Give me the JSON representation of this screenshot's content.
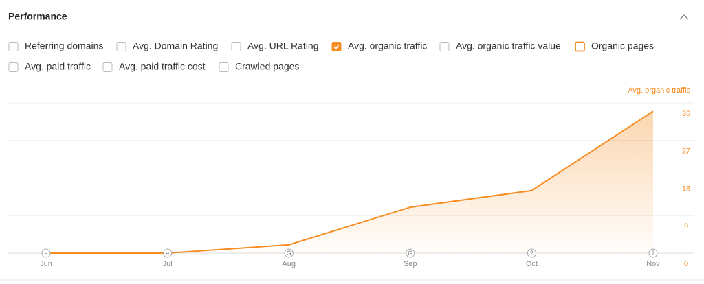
{
  "header": {
    "title": "Performance"
  },
  "checkboxes": [
    {
      "label": "Referring domains",
      "state": "off"
    },
    {
      "label": "Avg. Domain Rating",
      "state": "off"
    },
    {
      "label": "Avg. URL Rating",
      "state": "off"
    },
    {
      "label": "Avg. organic traffic",
      "state": "checked"
    },
    {
      "label": "Avg. organic traffic value",
      "state": "off"
    },
    {
      "label": "Organic pages",
      "state": "highlighted"
    },
    {
      "label": "Avg. paid traffic",
      "state": "off"
    },
    {
      "label": "Avg. paid traffic cost",
      "state": "off"
    },
    {
      "label": "Crawled pages",
      "state": "off"
    }
  ],
  "chart_data": {
    "type": "area",
    "y_axis_label": "Avg. organic traffic",
    "categories": [
      "Jun",
      "Jul",
      "Aug",
      "Sep",
      "Oct",
      "Nov"
    ],
    "annotations": [
      "a",
      "a",
      "G",
      "G",
      "2",
      "2"
    ],
    "series": [
      {
        "name": "Avg. organic traffic",
        "color": "#f68b1f",
        "values": [
          0,
          0,
          2,
          11,
          15,
          34
        ]
      }
    ],
    "ylim": [
      0,
      36
    ],
    "yticks": [
      0,
      9,
      18,
      27,
      36
    ],
    "grid": true
  }
}
